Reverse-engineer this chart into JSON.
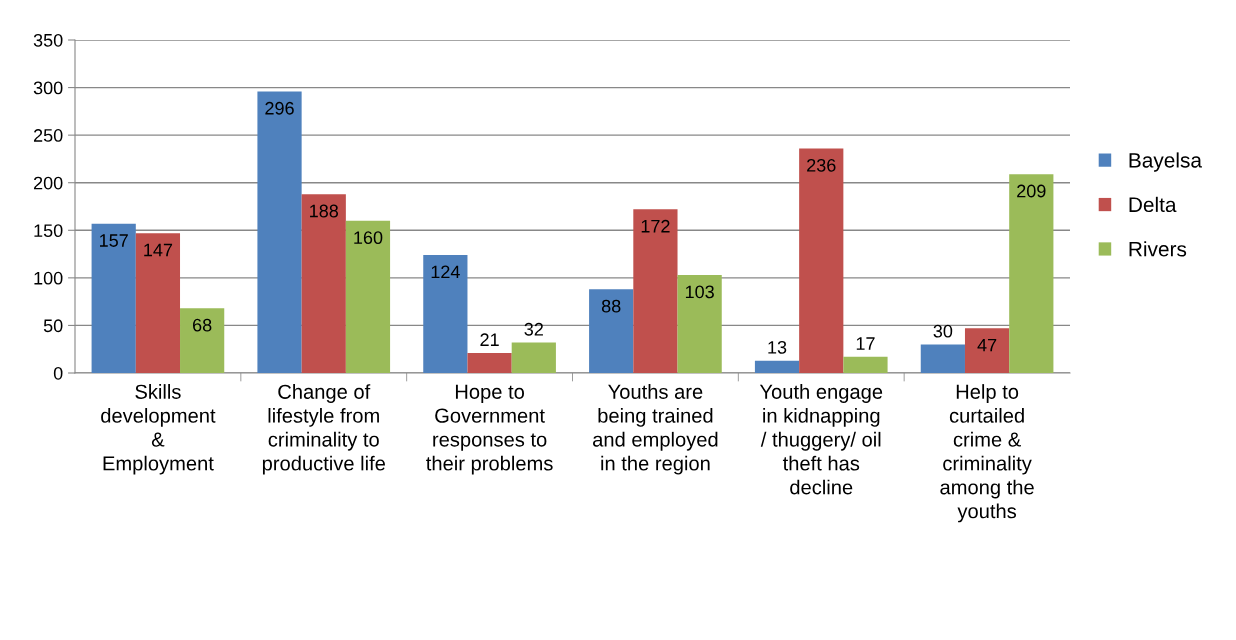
{
  "chart_data": {
    "type": "bar",
    "categories": [
      "Skills\ndevelopment\n&\nEmployment",
      "Change of\nlifestyle from\ncriminality to\nproductive life",
      "Hope to\nGovernment\nresponses to\ntheir problems",
      "Youths are\nbeing trained\nand employed\nin the region",
      "Youth engage\nin kidnapping\n/ thuggery/ oil\ntheft has\ndecline",
      "Help to\ncurtailed\ncrime &\ncriminality\namong the\nyouths"
    ],
    "series": [
      {
        "name": "Bayelsa",
        "color": "#4f81bd",
        "values": [
          157,
          296,
          124,
          88,
          13,
          30
        ]
      },
      {
        "name": "Delta",
        "color": "#c0504d",
        "values": [
          147,
          188,
          21,
          172,
          236,
          47
        ]
      },
      {
        "name": "Rivers",
        "color": "#9bbb59",
        "values": [
          68,
          160,
          32,
          103,
          17,
          209
        ]
      }
    ],
    "ylim": [
      0,
      350
    ],
    "yticks": [
      0,
      50,
      100,
      150,
      200,
      250,
      300,
      350
    ],
    "grid": "y",
    "legend": "right",
    "data_labels": true
  }
}
